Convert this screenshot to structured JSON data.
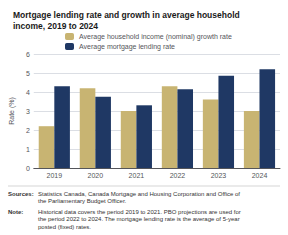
{
  "chart_data": {
    "type": "bar",
    "title": "Mortgage lending rate and growth in average household\nincome, 2019 to 2024",
    "categories": [
      "2019",
      "2020",
      "2021",
      "2022",
      "2023",
      "2024"
    ],
    "series": [
      {
        "name": "Average household income (nominal) growth rate",
        "color": "#C8B472",
        "values": [
          2.2,
          4.2,
          3.0,
          4.3,
          3.6,
          3.0
        ]
      },
      {
        "name": "Average mortgage lending rate",
        "color": "#1F3864",
        "values": [
          4.3,
          3.75,
          3.3,
          4.15,
          4.85,
          5.2
        ]
      }
    ],
    "ylabel": "Rate (%)",
    "ylim": [
      0,
      6
    ],
    "yticks": [
      0,
      1,
      2,
      3,
      4,
      5,
      6
    ],
    "grid": true,
    "legend": "top",
    "annotations": [
      {
        "label": "Sources:",
        "text": "Statistics Canada, Canada Mortgage and Housing Corporation and Office of\nthe Parliamentary Budget Officer."
      },
      {
        "label": "Note:",
        "text": "Historical data covers the period 2019 to 2021. PBO projections are used for\nthe period 2022 to 2024. The mortgage lending rate is the average of 5-year\nposted (fixed) rates."
      }
    ]
  }
}
